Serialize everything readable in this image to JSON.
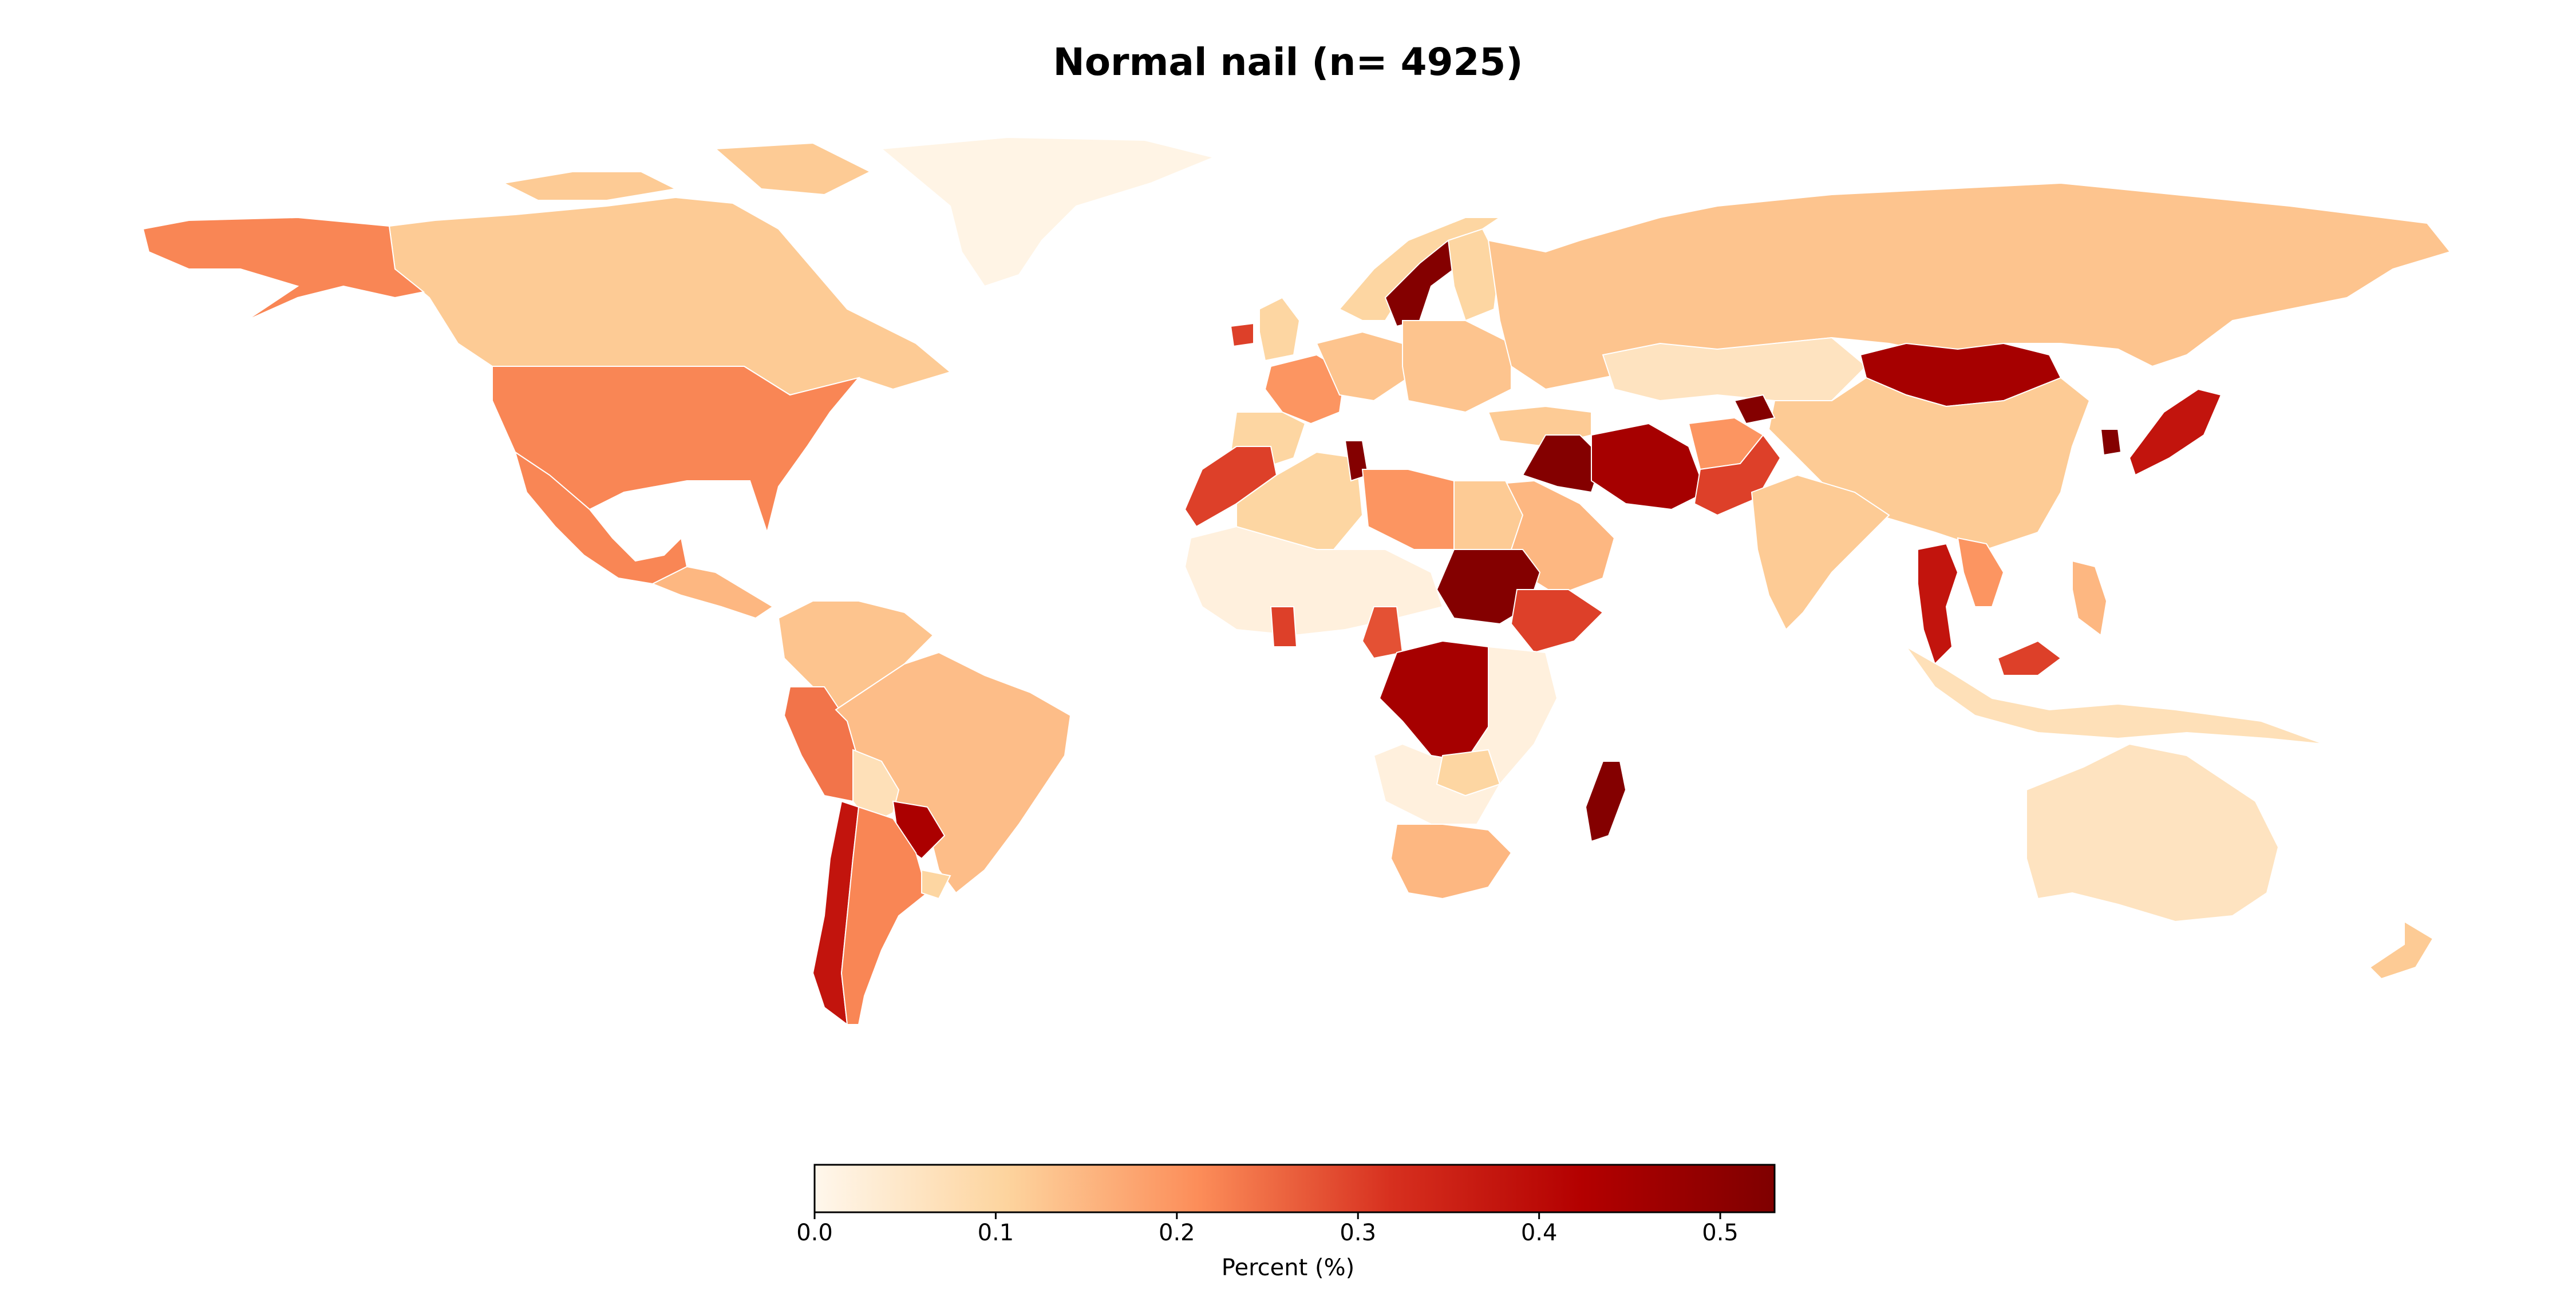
{
  "title": "Normal nail (n= 4925)",
  "colorbar": {
    "label": "Percent (%)",
    "min": 0.0,
    "max": 0.53,
    "ticks": [
      "0.0",
      "0.1",
      "0.2",
      "0.3",
      "0.4",
      "0.5"
    ],
    "colormap": "OrRd-like",
    "colors": [
      "#fff7ec",
      "#fdd49e",
      "#fc8d59",
      "#d7301f",
      "#b30000",
      "#7f0000"
    ]
  },
  "chart_data": {
    "type": "heatmap",
    "regions": [
      {
        "name": "Canada",
        "value": 0.12
      },
      {
        "name": "Alaska",
        "value": 0.22
      },
      {
        "name": "United States",
        "value": 0.22
      },
      {
        "name": "Mexico",
        "value": 0.22
      },
      {
        "name": "Greenland",
        "value": 0.01
      },
      {
        "name": "Central America",
        "value": 0.15
      },
      {
        "name": "Colombia / Venezuela",
        "value": 0.13
      },
      {
        "name": "Peru",
        "value": 0.24
      },
      {
        "name": "Brazil",
        "value": 0.14
      },
      {
        "name": "Bolivia",
        "value": 0.07
      },
      {
        "name": "Paraguay",
        "value": 0.44
      },
      {
        "name": "Chile",
        "value": 0.38
      },
      {
        "name": "Argentina",
        "value": 0.22
      },
      {
        "name": "Uruguay",
        "value": 0.1
      },
      {
        "name": "Norway",
        "value": 0.1
      },
      {
        "name": "Sweden",
        "value": 0.52
      },
      {
        "name": "Finland",
        "value": 0.1
      },
      {
        "name": "United Kingdom",
        "value": 0.1
      },
      {
        "name": "Ireland",
        "value": 0.3
      },
      {
        "name": "France",
        "value": 0.2
      },
      {
        "name": "Spain",
        "value": 0.1
      },
      {
        "name": "Germany / Central Europe",
        "value": 0.13
      },
      {
        "name": "Eastern Europe",
        "value": 0.13
      },
      {
        "name": "Russia",
        "value": 0.13
      },
      {
        "name": "Kazakhstan",
        "value": 0.06
      },
      {
        "name": "Mongolia",
        "value": 0.45
      },
      {
        "name": "China",
        "value": 0.12
      },
      {
        "name": "Japan",
        "value": 0.38
      },
      {
        "name": "South Korea",
        "value": 0.52
      },
      {
        "name": "Turkey",
        "value": 0.12
      },
      {
        "name": "Iraq",
        "value": 0.52
      },
      {
        "name": "Iran",
        "value": 0.45
      },
      {
        "name": "Saudi Arabia",
        "value": 0.15
      },
      {
        "name": "Afghanistan",
        "value": 0.2
      },
      {
        "name": "Pakistan",
        "value": 0.3
      },
      {
        "name": "Tajikistan",
        "value": 0.52
      },
      {
        "name": "India",
        "value": 0.12
      },
      {
        "name": "Thailand",
        "value": 0.38
      },
      {
        "name": "Vietnam",
        "value": 0.2
      },
      {
        "name": "Malaysia",
        "value": 0.3
      },
      {
        "name": "Indonesia",
        "value": 0.07
      },
      {
        "name": "Philippines",
        "value": 0.15
      },
      {
        "name": "Australia",
        "value": 0.06
      },
      {
        "name": "New Zealand",
        "value": 0.12
      },
      {
        "name": "Morocco",
        "value": 0.3
      },
      {
        "name": "Algeria",
        "value": 0.1
      },
      {
        "name": "Tunisia",
        "value": 0.52
      },
      {
        "name": "Libya",
        "value": 0.2
      },
      {
        "name": "Egypt",
        "value": 0.12
      },
      {
        "name": "Sudan",
        "value": 0.52
      },
      {
        "name": "Ethiopia",
        "value": 0.3
      },
      {
        "name": "West Africa",
        "value": 0.02
      },
      {
        "name": "Ghana",
        "value": 0.3
      },
      {
        "name": "Cameroon",
        "value": 0.28
      },
      {
        "name": "DR Congo",
        "value": 0.45
      },
      {
        "name": "Central / East Africa",
        "value": 0.02
      },
      {
        "name": "Zambia",
        "value": 0.1
      },
      {
        "name": "South Africa",
        "value": 0.15
      },
      {
        "name": "Madagascar",
        "value": 0.52
      }
    ]
  }
}
